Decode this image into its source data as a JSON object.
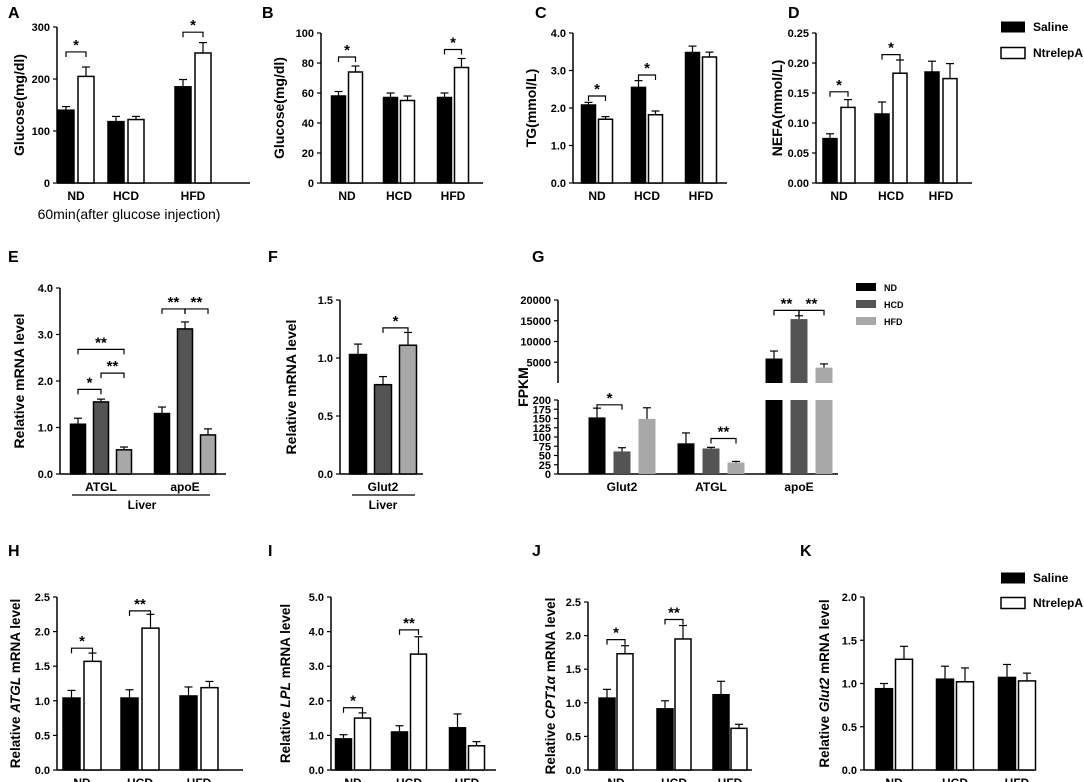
{
  "figure": "Twelve-panel bar chart figure",
  "legends": {
    "treatment": {
      "items": [
        {
          "name": "Saline",
          "color": "#000000"
        },
        {
          "name": "NtrelepA",
          "color": "#ffffff"
        }
      ]
    },
    "diet": {
      "items": [
        {
          "name": "ND",
          "color": "#000000"
        },
        {
          "name": "HCD",
          "color": "#545454"
        },
        {
          "name": "HFD",
          "color": "#a8a8a8"
        }
      ]
    }
  },
  "chart_data": [
    {
      "panel": "A",
      "type": "bar",
      "title": "",
      "ylabel": "Glucose(mg/dl)",
      "xlabel": "60min(after glucose injection)",
      "ylim": [
        0,
        300
      ],
      "yticks": [
        0,
        100,
        200,
        300
      ],
      "ytick_labels": [
        "0",
        "100",
        "200",
        "300"
      ],
      "categories": [
        "ND",
        "HCD",
        "HFD"
      ],
      "series": [
        {
          "name": "Saline",
          "values": [
            140,
            118,
            185
          ],
          "errors": [
            7,
            10,
            14
          ]
        },
        {
          "name": "NtrelepA",
          "values": [
            205,
            122,
            250
          ],
          "errors": [
            18,
            6,
            20
          ]
        }
      ],
      "annotations": [
        {
          "text": "*",
          "category": 0,
          "from": 0,
          "to": 1,
          "y": 252
        },
        {
          "text": "*",
          "category": 2,
          "from": 0,
          "to": 1,
          "y": 290
        }
      ]
    },
    {
      "panel": "B",
      "type": "bar",
      "title": "",
      "ylabel": "Glucose(mg/dl)",
      "xlabel": "",
      "ylim": [
        0,
        100
      ],
      "yticks": [
        0,
        20,
        40,
        60,
        80,
        100
      ],
      "ytick_labels": [
        "0",
        "20",
        "40",
        "60",
        "80",
        "100"
      ],
      "categories": [
        "ND",
        "HCD",
        "HFD"
      ],
      "series": [
        {
          "name": "Saline",
          "values": [
            58,
            57,
            57
          ],
          "errors": [
            3,
            3,
            3
          ]
        },
        {
          "name": "NtrelepA",
          "values": [
            74,
            55,
            77
          ],
          "errors": [
            4,
            3,
            6
          ]
        }
      ],
      "annotations": [
        {
          "text": "*",
          "category": 0,
          "from": 0,
          "to": 1,
          "y": 84
        },
        {
          "text": "*",
          "category": 2,
          "from": 0,
          "to": 1,
          "y": 89
        }
      ]
    },
    {
      "panel": "C",
      "type": "bar",
      "title": "",
      "ylabel": "TG(mmol/L)",
      "xlabel": "",
      "ylim": [
        0,
        4
      ],
      "yticks": [
        0,
        1,
        2,
        3,
        4
      ],
      "ytick_labels": [
        "0.0",
        "1.0",
        "2.0",
        "3.0",
        "4.0"
      ],
      "categories": [
        "ND",
        "HCD",
        "HFD"
      ],
      "series": [
        {
          "name": "Saline",
          "values": [
            2.08,
            2.55,
            3.48
          ],
          "errors": [
            0.07,
            0.18,
            0.17
          ]
        },
        {
          "name": "NtrelepA",
          "values": [
            1.7,
            1.82,
            3.36
          ],
          "errors": [
            0.07,
            0.1,
            0.13
          ]
        }
      ],
      "annotations": [
        {
          "text": "*",
          "category": 0,
          "from": 0,
          "to": 1,
          "y": 2.32
        },
        {
          "text": "*",
          "category": 1,
          "from": 0,
          "to": 1,
          "y": 2.88
        }
      ]
    },
    {
      "panel": "D",
      "type": "bar",
      "title": "",
      "ylabel": "NEFA(mmol/L)",
      "xlabel": "",
      "ylim": [
        0,
        0.25
      ],
      "yticks": [
        0,
        0.05,
        0.1,
        0.15,
        0.2,
        0.25
      ],
      "ytick_labels": [
        "0.00",
        "0.05",
        "0.10",
        "0.15",
        "0.20",
        "0.25"
      ],
      "categories": [
        "ND",
        "HCD",
        "HFD"
      ],
      "series": [
        {
          "name": "Saline",
          "values": [
            0.074,
            0.115,
            0.185
          ],
          "errors": [
            0.008,
            0.02,
            0.018
          ]
        },
        {
          "name": "NtrelepA",
          "values": [
            0.126,
            0.183,
            0.174
          ],
          "errors": [
            0.013,
            0.022,
            0.025
          ]
        }
      ],
      "annotations": [
        {
          "text": "*",
          "category": 0,
          "from": 0,
          "to": 1,
          "y": 0.152
        },
        {
          "text": "*",
          "category": 1,
          "from": 0,
          "to": 1,
          "y": 0.214
        }
      ]
    },
    {
      "panel": "E",
      "type": "bar",
      "title": "",
      "ylabel": "Relative mRNA  level",
      "xlabel": "Liver",
      "ylim": [
        0,
        4
      ],
      "yticks": [
        0,
        1,
        2,
        3,
        4
      ],
      "ytick_labels": [
        "0.0",
        "1.0",
        "2.0",
        "3.0",
        "4.0"
      ],
      "categories": [
        "ATGL",
        "apoE"
      ],
      "series": [
        {
          "name": "ND",
          "values": [
            1.07,
            1.3
          ],
          "errors": [
            0.13,
            0.14
          ]
        },
        {
          "name": "HCD",
          "values": [
            1.55,
            3.12
          ],
          "errors": [
            0.06,
            0.15
          ]
        },
        {
          "name": "HFD",
          "values": [
            0.52,
            0.84
          ],
          "errors": [
            0.06,
            0.13
          ]
        }
      ],
      "annotations": [
        {
          "text": "*",
          "category": 0,
          "from": 0,
          "to": 1,
          "y": 1.82
        },
        {
          "text": "**",
          "category": 0,
          "from": 1,
          "to": 2,
          "y": 2.17
        },
        {
          "text": "**",
          "category": 0,
          "from": 0,
          "to": 2,
          "y": 2.68
        },
        {
          "text": "**",
          "category": 1,
          "from": 0,
          "to": 1,
          "y": 3.55
        },
        {
          "text": "**",
          "category": 1,
          "from": 1,
          "to": 2,
          "y": 3.55
        }
      ]
    },
    {
      "panel": "F",
      "type": "bar",
      "title": "",
      "ylabel": "Relative mRNA  level",
      "xlabel": "Liver",
      "ylim": [
        0,
        1.5
      ],
      "yticks": [
        0,
        0.5,
        1,
        1.5
      ],
      "ytick_labels": [
        "0.0",
        "0.5",
        "1.0",
        "1.5"
      ],
      "categories": [
        "Glut2"
      ],
      "series": [
        {
          "name": "ND",
          "values": [
            1.03
          ],
          "errors": [
            0.09
          ]
        },
        {
          "name": "HCD",
          "values": [
            0.77
          ],
          "errors": [
            0.07
          ]
        },
        {
          "name": "HFD",
          "values": [
            1.11
          ],
          "errors": [
            0.11
          ]
        }
      ],
      "annotations": [
        {
          "text": "*",
          "category": 0,
          "from": 1,
          "to": 2,
          "y": 1.26
        }
      ]
    },
    {
      "panel": "G",
      "type": "bar",
      "title": "",
      "ylabel": "FPKM",
      "xlabel": "",
      "axis_break": true,
      "ylim_lower": [
        0,
        200
      ],
      "yticks_lower": [
        0,
        25,
        50,
        75,
        100,
        125,
        150,
        175,
        200
      ],
      "ytick_labels_lower": [
        "0",
        "25",
        "50",
        "75",
        "100",
        "125",
        "150",
        "175",
        "200"
      ],
      "ylim_upper": [
        0,
        20000
      ],
      "yticks_upper": [
        5000,
        10000,
        15000,
        20000
      ],
      "ytick_labels_upper": [
        "5000",
        "10000",
        "15000",
        "20000"
      ],
      "categories": [
        "Glut2",
        "ATGL",
        "apoE"
      ],
      "series": [
        {
          "name": "ND",
          "values": [
            153,
            83,
            5900
          ],
          "errors": [
            25,
            28,
            1800
          ]
        },
        {
          "name": "HCD",
          "values": [
            61,
            69,
            15400
          ],
          "errors": [
            10,
            3,
            800
          ]
        },
        {
          "name": "HFD",
          "values": [
            149,
            31,
            3700
          ],
          "errors": [
            30,
            3,
            900
          ]
        }
      ],
      "annotations": [
        {
          "text": "*",
          "category": 0,
          "from": 0,
          "to": 1,
          "y": 187
        },
        {
          "text": "**",
          "category": 1,
          "from": 1,
          "to": 2,
          "y": 96
        },
        {
          "text": "**",
          "category": 2,
          "from": 0,
          "to": 1,
          "y": 17500
        },
        {
          "text": "**",
          "category": 2,
          "from": 1,
          "to": 2,
          "y": 17500
        }
      ]
    },
    {
      "panel": "H",
      "type": "bar",
      "title": "",
      "ylabel_parts": [
        "Relative ",
        "ATGL",
        " mRNA  level"
      ],
      "xlabel": "",
      "ylim": [
        0,
        2.5
      ],
      "yticks": [
        0,
        0.5,
        1,
        1.5,
        2,
        2.5
      ],
      "ytick_labels": [
        "0.0",
        "0.5",
        "1.0",
        "1.5",
        "2.0",
        "2.5"
      ],
      "categories": [
        "ND",
        "HCD",
        "HFD"
      ],
      "series": [
        {
          "name": "Saline",
          "values": [
            1.04,
            1.04,
            1.07
          ],
          "errors": [
            0.11,
            0.12,
            0.13
          ]
        },
        {
          "name": "NtrelepA",
          "values": [
            1.57,
            2.05,
            1.19
          ],
          "errors": [
            0.12,
            0.2,
            0.09
          ]
        }
      ],
      "annotations": [
        {
          "text": "*",
          "category": 0,
          "from": 0,
          "to": 1,
          "y": 1.76
        },
        {
          "text": "**",
          "category": 1,
          "from": 0,
          "to": 1,
          "y": 2.3
        }
      ]
    },
    {
      "panel": "I",
      "type": "bar",
      "title": "",
      "ylabel_parts": [
        "Relative ",
        "LPL",
        " mRNA  level"
      ],
      "xlabel": "",
      "ylim": [
        0,
        5
      ],
      "yticks": [
        0,
        1,
        2,
        3,
        4,
        5
      ],
      "ytick_labels": [
        "0.0",
        "1.0",
        "2.0",
        "3.0",
        "4.0",
        "5.0"
      ],
      "categories": [
        "ND",
        "HCD",
        "HFD"
      ],
      "series": [
        {
          "name": "Saline",
          "values": [
            0.9,
            1.1,
            1.22
          ],
          "errors": [
            0.12,
            0.18,
            0.4
          ]
        },
        {
          "name": "NtrelepA",
          "values": [
            1.5,
            3.35,
            0.7
          ],
          "errors": [
            0.15,
            0.5,
            0.12
          ]
        }
      ],
      "annotations": [
        {
          "text": "*",
          "category": 0,
          "from": 0,
          "to": 1,
          "y": 1.8
        },
        {
          "text": "**",
          "category": 1,
          "from": 0,
          "to": 1,
          "y": 4.05
        }
      ]
    },
    {
      "panel": "J",
      "type": "bar",
      "title": "",
      "ylabel_parts": [
        "Relative ",
        "CPT1α",
        " mRNA  level"
      ],
      "xlabel": "",
      "ylim": [
        0,
        2.5
      ],
      "yticks": [
        0,
        0.5,
        1,
        1.5,
        2,
        2.5
      ],
      "ytick_labels": [
        "0.0",
        "0.5",
        "1.0",
        "1.5",
        "2.0",
        "2.5"
      ],
      "categories": [
        "ND",
        "HCD",
        "HFD"
      ],
      "series": [
        {
          "name": "Saline",
          "values": [
            1.07,
            0.91,
            1.12
          ],
          "errors": [
            0.13,
            0.12,
            0.2
          ]
        },
        {
          "name": "NtrelepA",
          "values": [
            1.73,
            1.95,
            0.62
          ],
          "errors": [
            0.12,
            0.2,
            0.06
          ]
        }
      ],
      "annotations": [
        {
          "text": "*",
          "category": 0,
          "from": 0,
          "to": 1,
          "y": 1.94
        },
        {
          "text": "**",
          "category": 1,
          "from": 0,
          "to": 1,
          "y": 2.24
        }
      ]
    },
    {
      "panel": "K",
      "type": "bar",
      "title": "",
      "ylabel_parts": [
        "Relative ",
        "Glut2",
        " mRNA  level"
      ],
      "xlabel": "",
      "ylim": [
        0,
        2
      ],
      "yticks": [
        0,
        0.5,
        1,
        1.5,
        2
      ],
      "ytick_labels": [
        "0.0",
        "0.5",
        "1.0",
        "1.5",
        "2.0"
      ],
      "categories": [
        "ND",
        "HCD",
        "HFD"
      ],
      "series": [
        {
          "name": "Saline",
          "values": [
            0.94,
            1.05,
            1.07
          ],
          "errors": [
            0.06,
            0.15,
            0.15
          ]
        },
        {
          "name": "NtrelepA",
          "values": [
            1.28,
            1.02,
            1.03
          ],
          "errors": [
            0.15,
            0.16,
            0.09
          ]
        }
      ],
      "annotations": []
    }
  ]
}
